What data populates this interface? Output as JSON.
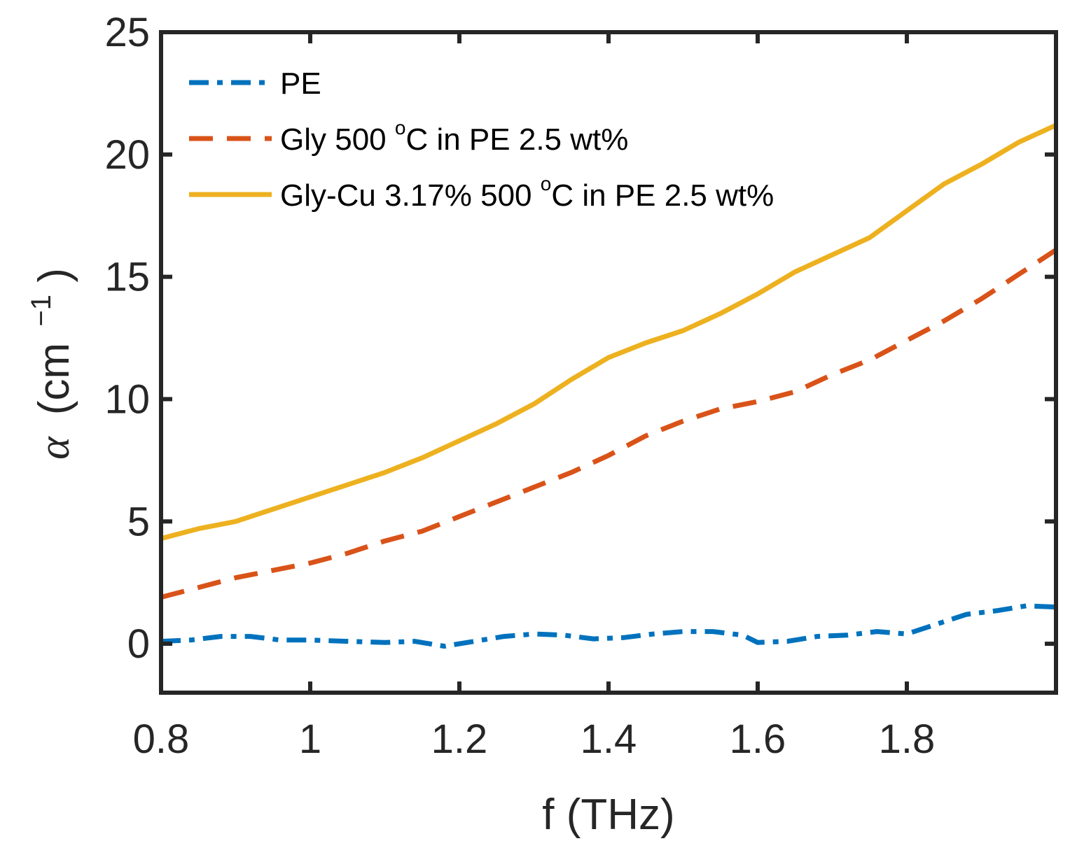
{
  "chart_data": {
    "type": "line",
    "title": "",
    "xlabel": "f (THz)",
    "ylabel_symbol": "α",
    "ylabel_unit": "(cm",
    "ylabel_sup": "−1",
    "ylabel_close": ")",
    "xlim": [
      0.8,
      2.0
    ],
    "ylim": [
      -2,
      25
    ],
    "xticks": [
      0.8,
      1.0,
      1.2,
      1.4,
      1.6,
      1.8
    ],
    "xtick_labels": [
      "0.8",
      "1",
      "1.2",
      "1.4",
      "1.6",
      "1.8"
    ],
    "yticks": [
      0,
      5,
      10,
      15,
      20,
      25
    ],
    "ytick_labels": [
      "0",
      "5",
      "10",
      "15",
      "20",
      "25"
    ],
    "grid": false,
    "legend_position": "top-left",
    "series": [
      {
        "name": "PE",
        "label_parts": [
          "PE"
        ],
        "color": "#0072BD",
        "style": "dashdot",
        "x": [
          0.8,
          0.84,
          0.88,
          0.92,
          0.96,
          1.0,
          1.05,
          1.1,
          1.14,
          1.18,
          1.22,
          1.26,
          1.3,
          1.34,
          1.38,
          1.42,
          1.46,
          1.5,
          1.54,
          1.58,
          1.6,
          1.64,
          1.68,
          1.72,
          1.76,
          1.8,
          1.84,
          1.88,
          1.92,
          1.96,
          2.0
        ],
        "y": [
          0.1,
          0.15,
          0.3,
          0.3,
          0.15,
          0.15,
          0.1,
          0.05,
          0.1,
          -0.1,
          0.1,
          0.3,
          0.4,
          0.35,
          0.2,
          0.25,
          0.4,
          0.5,
          0.5,
          0.35,
          0.05,
          0.1,
          0.3,
          0.35,
          0.5,
          0.4,
          0.8,
          1.2,
          1.35,
          1.55,
          1.5
        ]
      },
      {
        "name": "Gly 500 °C in PE 2.5 wt%",
        "label_parts": [
          "Gly 500 ",
          "o",
          "C in PE 2.5 wt%"
        ],
        "color": "#D95319",
        "style": "dashed",
        "x": [
          0.8,
          0.85,
          0.9,
          0.95,
          1.0,
          1.05,
          1.1,
          1.15,
          1.2,
          1.25,
          1.3,
          1.35,
          1.4,
          1.45,
          1.5,
          1.55,
          1.6,
          1.65,
          1.7,
          1.75,
          1.8,
          1.85,
          1.9,
          1.95,
          2.0
        ],
        "y": [
          1.9,
          2.3,
          2.7,
          3.0,
          3.3,
          3.7,
          4.2,
          4.6,
          5.2,
          5.8,
          6.4,
          7.0,
          7.7,
          8.5,
          9.1,
          9.6,
          9.9,
          10.3,
          11.0,
          11.6,
          12.4,
          13.2,
          14.1,
          15.1,
          16.1
        ]
      },
      {
        "name": "Gly-Cu 3.17% 500 °C in PE 2.5 wt%",
        "label_parts": [
          "Gly-Cu 3.17% 500 ",
          "o",
          "C in PE 2.5 wt%"
        ],
        "color": "#EDB120",
        "style": "solid",
        "x": [
          0.8,
          0.85,
          0.9,
          0.95,
          1.0,
          1.05,
          1.1,
          1.15,
          1.2,
          1.25,
          1.3,
          1.35,
          1.4,
          1.45,
          1.5,
          1.55,
          1.6,
          1.65,
          1.7,
          1.75,
          1.8,
          1.85,
          1.9,
          1.95,
          2.0
        ],
        "y": [
          4.3,
          4.7,
          5.0,
          5.5,
          6.0,
          6.5,
          7.0,
          7.6,
          8.3,
          9.0,
          9.8,
          10.8,
          11.7,
          12.3,
          12.8,
          13.5,
          14.3,
          15.2,
          15.9,
          16.6,
          17.7,
          18.8,
          19.6,
          20.5,
          21.2
        ]
      }
    ]
  }
}
